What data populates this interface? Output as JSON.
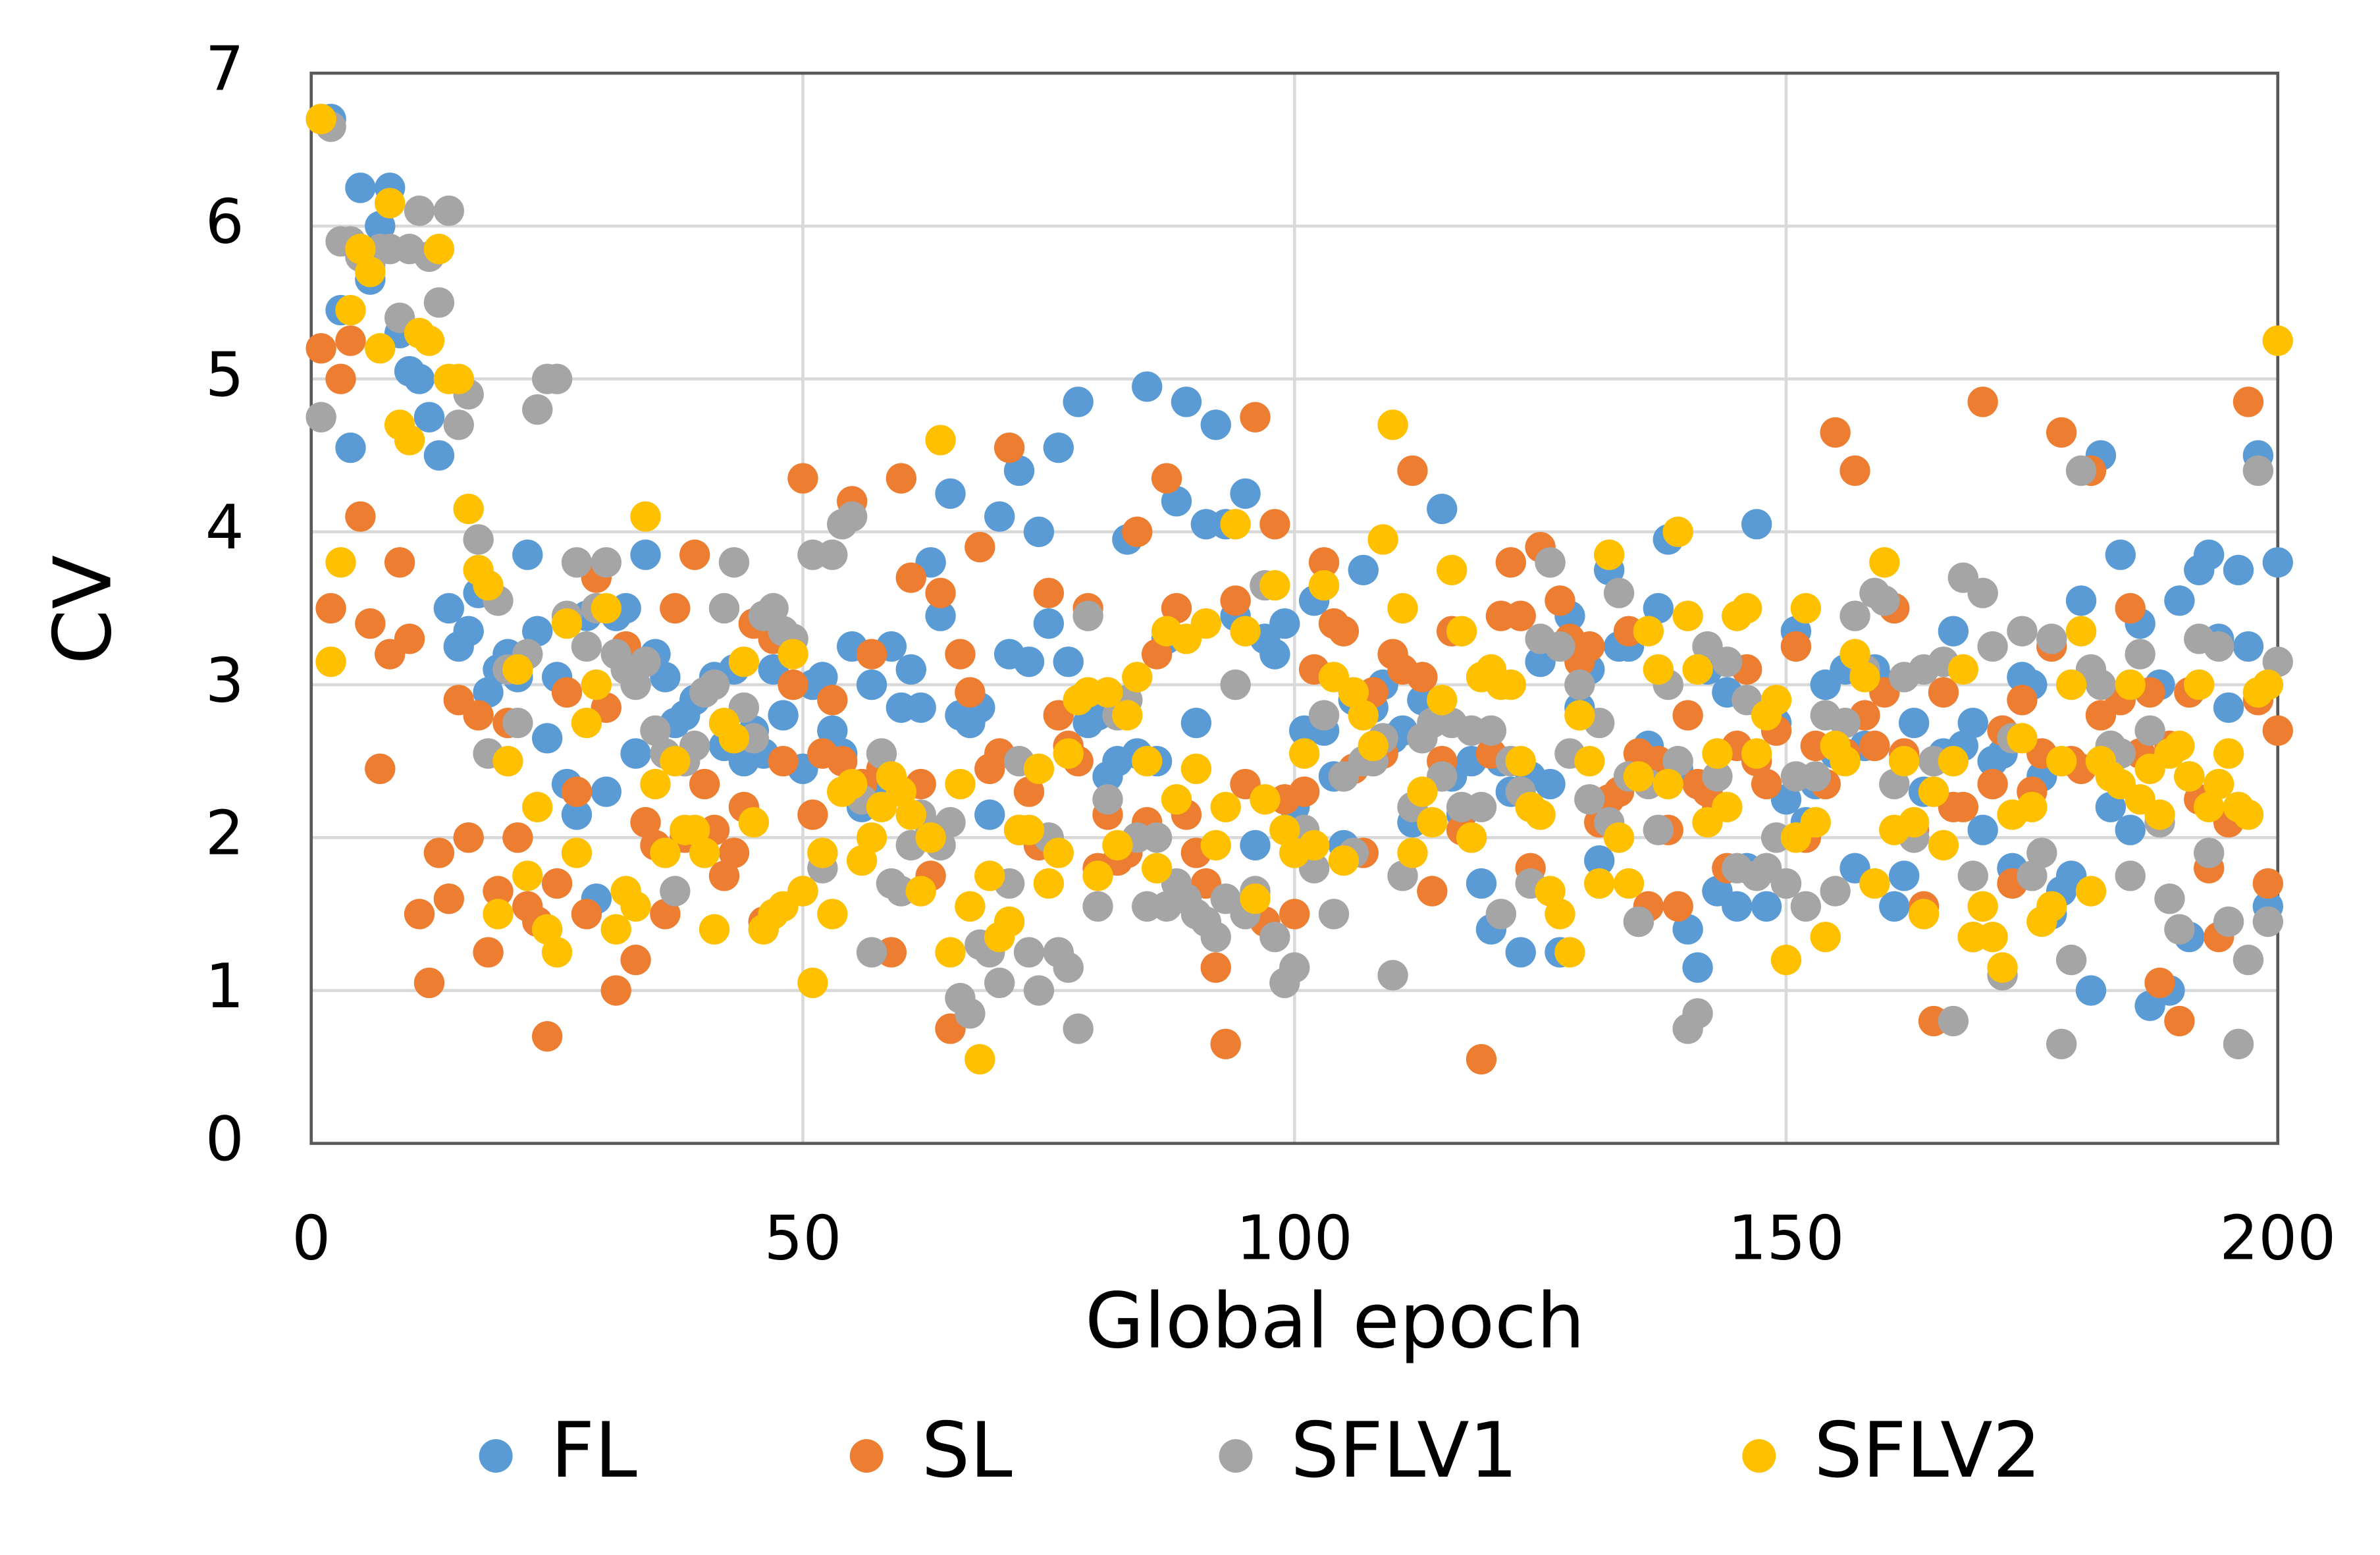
{
  "chart_data": {
    "type": "scatter",
    "x_label": "Global epoch",
    "y_label": "CV",
    "x": [
      1,
      2,
      3,
      4,
      5,
      6,
      7,
      8,
      9,
      10,
      11,
      12,
      13,
      14,
      15,
      16,
      17,
      18,
      19,
      20,
      21,
      22,
      23,
      24,
      25,
      26,
      27,
      28,
      29,
      30,
      31,
      32,
      33,
      34,
      35,
      36,
      37,
      38,
      39,
      40,
      41,
      42,
      43,
      44,
      45,
      46,
      47,
      48,
      49,
      50,
      51,
      52,
      53,
      54,
      55,
      56,
      57,
      58,
      59,
      60,
      61,
      62,
      63,
      64,
      65,
      66,
      67,
      68,
      69,
      70,
      71,
      72,
      73,
      74,
      75,
      76,
      77,
      78,
      79,
      80,
      81,
      82,
      83,
      84,
      85,
      86,
      87,
      88,
      89,
      90,
      91,
      92,
      93,
      94,
      95,
      96,
      97,
      98,
      99,
      100,
      101,
      102,
      103,
      104,
      105,
      106,
      107,
      108,
      109,
      110,
      111,
      112,
      113,
      114,
      115,
      116,
      117,
      118,
      119,
      120,
      121,
      122,
      123,
      124,
      125,
      126,
      127,
      128,
      129,
      130,
      131,
      132,
      133,
      134,
      135,
      136,
      137,
      138,
      139,
      140,
      141,
      142,
      143,
      144,
      145,
      146,
      147,
      148,
      149,
      150,
      151,
      152,
      153,
      154,
      155,
      156,
      157,
      158,
      159,
      160,
      161,
      162,
      163,
      164,
      165,
      166,
      167,
      168,
      169,
      170,
      171,
      172,
      173,
      174,
      175,
      176,
      177,
      178,
      179,
      180,
      181,
      182,
      183,
      184,
      185,
      186,
      187,
      188,
      189,
      190,
      191,
      192,
      193,
      194,
      195,
      196,
      197,
      198,
      199,
      200
    ],
    "series": [
      {
        "name": "FL",
        "color": "#5b9bd5",
        "values": [
          6.7,
          6.7,
          5.45,
          4.55,
          6.25,
          5.65,
          6.0,
          6.25,
          5.3,
          5.05,
          5.0,
          4.75,
          4.5,
          3.5,
          3.25,
          3.35,
          3.6,
          2.95,
          3.1,
          3.2,
          3.05,
          3.85,
          3.35,
          2.65,
          3.05,
          2.35,
          2.15,
          3.45,
          1.6,
          2.3,
          3.45,
          3.5,
          2.55,
          3.85,
          3.2,
          3.05,
          2.75,
          2.8,
          2.9,
          2.95,
          3.05,
          2.6,
          3.1,
          2.5,
          2.7,
          2.55,
          3.1,
          2.8,
          3.3,
          2.45,
          3.0,
          3.05,
          2.7,
          2.55,
          3.25,
          2.2,
          3.0,
          2.35,
          3.25,
          2.85,
          3.1,
          2.85,
          3.8,
          3.45,
          4.25,
          2.8,
          2.75,
          2.85,
          2.15,
          4.1,
          3.2,
          4.4,
          3.15,
          4.0,
          3.4,
          4.55,
          3.15,
          4.85,
          2.75,
          2.8,
          2.4,
          2.5,
          3.95,
          2.55,
          4.95,
          2.5,
          3.3,
          4.2,
          4.85,
          2.75,
          4.05,
          4.7,
          4.05,
          3.45,
          4.25,
          1.95,
          3.3,
          3.2,
          3.4,
          2.2,
          2.7,
          3.55,
          2.7,
          2.4,
          1.95,
          2.9,
          3.75,
          2.85,
          3.0,
          2.65,
          2.7,
          2.1,
          2.9,
          2.85,
          4.15,
          2.4,
          2.15,
          2.5,
          1.7,
          1.4,
          2.5,
          2.3,
          1.25,
          2.4,
          3.15,
          2.35,
          1.25,
          3.45,
          2.85,
          3.1,
          1.85,
          3.75,
          3.25,
          3.25,
          1.45,
          2.6,
          3.5,
          3.95,
          2.45,
          1.4,
          1.15,
          3.1,
          1.65,
          2.95,
          1.55,
          1.8,
          4.05,
          1.55,
          2.75,
          2.25,
          3.35,
          2.1,
          2.35,
          3.0,
          2.55,
          3.1,
          1.8,
          2.6,
          3.1,
          3.0,
          1.55,
          1.75,
          2.75,
          2.3,
          2.3,
          2.55,
          3.35,
          2.6,
          2.75,
          2.05,
          2.5,
          2.55,
          1.8,
          3.05,
          3.0,
          2.4,
          1.5,
          1.65,
          1.75,
          3.55,
          1.0,
          4.5,
          2.2,
          3.85,
          2.05,
          3.4,
          0.9,
          3.0,
          1.0,
          3.55,
          1.35,
          3.75,
          3.85,
          3.3,
          2.85,
          3.75,
          3.25,
          4.5,
          1.55,
          3.8
        ]
      },
      {
        "name": "SL",
        "color": "#ed7d31",
        "values": [
          5.2,
          3.5,
          5.0,
          5.25,
          4.1,
          3.4,
          2.45,
          3.2,
          3.8,
          3.3,
          1.5,
          1.05,
          1.9,
          1.6,
          2.9,
          2.0,
          2.8,
          1.25,
          1.65,
          2.75,
          2.0,
          1.55,
          1.45,
          0.7,
          1.7,
          2.95,
          2.3,
          1.5,
          3.7,
          2.85,
          1.0,
          3.25,
          1.2,
          2.1,
          1.95,
          1.5,
          3.5,
          2.0,
          3.85,
          2.35,
          2.05,
          1.75,
          1.9,
          2.2,
          3.4,
          1.45,
          3.3,
          2.5,
          3.0,
          4.35,
          2.15,
          2.55,
          2.9,
          2.5,
          4.2,
          2.35,
          3.2,
          2.45,
          1.25,
          4.35,
          3.7,
          2.35,
          1.75,
          3.6,
          0.75,
          3.2,
          2.95,
          3.9,
          2.45,
          2.55,
          4.55,
          2.05,
          2.3,
          1.95,
          3.6,
          2.8,
          2.6,
          2.5,
          3.5,
          1.8,
          2.15,
          1.85,
          1.9,
          4.0,
          2.1,
          3.2,
          4.35,
          3.5,
          2.15,
          1.9,
          1.7,
          1.15,
          0.65,
          3.55,
          2.35,
          4.75,
          1.45,
          4.05,
          2.25,
          1.5,
          2.3,
          3.1,
          3.8,
          3.4,
          3.35,
          2.45,
          1.9,
          2.95,
          2.55,
          3.2,
          3.1,
          4.4,
          3.05,
          1.65,
          2.5,
          3.35,
          2.05,
          2.0,
          0.55,
          2.55,
          3.45,
          3.8,
          3.45,
          1.8,
          3.9,
          3.8,
          3.55,
          3.3,
          3.15,
          3.25,
          2.1,
          2.25,
          2.3,
          3.35,
          2.55,
          1.55,
          2.5,
          2.05,
          1.55,
          2.8,
          2.35,
          2.3,
          2.2,
          1.8,
          2.6,
          3.1,
          2.5,
          2.35,
          2.7,
          1.7,
          3.25,
          2.0,
          2.6,
          2.35,
          4.65,
          2.55,
          4.4,
          2.8,
          2.6,
          2.95,
          3.5,
          2.55,
          2.05,
          1.55,
          0.8,
          2.95,
          2.2,
          2.2,
          1.35,
          4.85,
          2.35,
          2.7,
          1.7,
          2.9,
          2.3,
          2.55,
          3.25,
          4.65,
          2.5,
          2.45,
          4.4,
          2.8,
          2.6,
          2.9,
          3.5,
          2.55,
          2.95,
          1.05,
          2.6,
          0.8,
          2.95,
          2.25,
          1.8,
          1.35,
          2.1,
          2.2,
          4.85,
          2.9,
          1.7,
          2.7
        ]
      },
      {
        "name": "SFLV1",
        "color": "#a5a5a5",
        "values": [
          4.75,
          6.65,
          5.9,
          5.9,
          5.8,
          5.75,
          5.85,
          5.85,
          5.4,
          5.85,
          6.1,
          5.8,
          5.5,
          6.1,
          4.7,
          4.9,
          3.95,
          2.55,
          3.55,
          3.1,
          2.75,
          3.2,
          4.8,
          5.0,
          5.0,
          3.45,
          3.8,
          3.25,
          3.5,
          3.8,
          3.2,
          3.1,
          3.0,
          3.15,
          2.7,
          2.55,
          1.65,
          2.5,
          2.6,
          2.95,
          3.0,
          3.5,
          3.8,
          2.85,
          2.65,
          3.45,
          3.5,
          3.35,
          3.3,
          1.65,
          3.85,
          1.8,
          3.85,
          4.05,
          4.1,
          2.25,
          1.25,
          2.55,
          1.7,
          1.65,
          1.95,
          2.15,
          2.05,
          1.95,
          2.1,
          0.95,
          0.85,
          1.3,
          1.25,
          1.05,
          1.7,
          2.5,
          1.25,
          1.0,
          2.0,
          1.25,
          1.15,
          0.75,
          3.45,
          1.55,
          2.25,
          2.8,
          2.9,
          2.0,
          1.55,
          2.0,
          1.55,
          1.7,
          1.6,
          1.5,
          1.45,
          1.35,
          1.6,
          3.0,
          1.5,
          1.65,
          3.65,
          1.35,
          1.05,
          1.15,
          2.05,
          1.8,
          2.8,
          1.5,
          2.4,
          1.9,
          2.5,
          2.5,
          2.65,
          1.1,
          1.75,
          2.2,
          2.65,
          2.75,
          2.4,
          2.75,
          2.2,
          2.7,
          2.2,
          2.7,
          1.5,
          2.5,
          2.3,
          1.7,
          3.3,
          3.8,
          3.25,
          2.55,
          3.0,
          2.25,
          2.75,
          2.1,
          3.6,
          2.4,
          1.45,
          2.35,
          2.05,
          3.0,
          2.5,
          0.75,
          0.85,
          3.25,
          2.4,
          3.15,
          1.8,
          2.9,
          1.75,
          1.8,
          2.0,
          1.7,
          2.4,
          1.55,
          2.4,
          2.8,
          1.65,
          2.75,
          3.45,
          3.1,
          3.6,
          3.55,
          2.35,
          3.05,
          2.0,
          3.1,
          2.5,
          3.15,
          0.8,
          3.7,
          1.75,
          3.6,
          3.25,
          1.1,
          2.65,
          3.35,
          1.75,
          1.9,
          3.3,
          0.65,
          1.2,
          4.4,
          3.1,
          3.0,
          2.6,
          2.55,
          1.75,
          3.2,
          2.7,
          2.1,
          1.6,
          1.4,
          2.4,
          3.3,
          1.9,
          3.25,
          1.45,
          0.65,
          1.2,
          4.4,
          1.45,
          3.15
        ]
      },
      {
        "name": "SFLV2",
        "color": "#ffc000",
        "values": [
          6.7,
          3.15,
          3.8,
          5.45,
          5.85,
          5.7,
          5.2,
          6.15,
          4.7,
          4.6,
          5.3,
          5.25,
          5.85,
          5.0,
          5.0,
          4.15,
          3.75,
          3.65,
          1.5,
          2.5,
          3.1,
          1.75,
          2.2,
          1.4,
          1.25,
          3.4,
          1.9,
          2.75,
          3.0,
          3.5,
          1.4,
          1.65,
          1.55,
          4.1,
          2.35,
          1.9,
          2.5,
          2.05,
          2.05,
          1.9,
          1.4,
          2.75,
          2.65,
          3.15,
          2.1,
          1.4,
          1.5,
          1.55,
          3.2,
          1.65,
          1.05,
          1.9,
          1.5,
          2.3,
          2.35,
          1.85,
          2.0,
          2.2,
          2.4,
          2.3,
          2.15,
          1.65,
          2.0,
          4.6,
          1.25,
          2.35,
          1.55,
          0.55,
          1.75,
          1.35,
          1.45,
          2.05,
          2.05,
          2.45,
          1.7,
          1.9,
          2.55,
          2.9,
          2.95,
          1.75,
          2.95,
          1.95,
          2.8,
          3.05,
          2.5,
          1.8,
          3.35,
          2.25,
          3.3,
          2.45,
          3.4,
          1.95,
          2.2,
          4.05,
          3.35,
          1.6,
          2.25,
          3.65,
          2.05,
          1.9,
          2.55,
          1.95,
          3.65,
          3.05,
          1.85,
          2.95,
          2.8,
          2.6,
          3.95,
          4.7,
          3.5,
          1.9,
          2.3,
          2.1,
          2.9,
          3.75,
          3.35,
          2.0,
          3.05,
          3.1,
          3.0,
          3.0,
          2.5,
          2.2,
          2.15,
          1.65,
          1.5,
          1.25,
          2.8,
          2.5,
          1.7,
          3.85,
          2.0,
          1.7,
          2.4,
          3.35,
          3.1,
          2.35,
          4.0,
          3.45,
          3.1,
          2.1,
          2.55,
          2.2,
          3.45,
          3.5,
          2.55,
          2.8,
          2.9,
          1.2,
          2.0,
          3.5,
          2.1,
          1.35,
          2.6,
          2.5,
          3.2,
          3.05,
          1.7,
          3.8,
          2.05,
          2.5,
          2.1,
          1.5,
          2.3,
          1.95,
          2.5,
          3.1,
          1.35,
          1.55,
          1.35,
          1.15,
          2.15,
          2.65,
          2.2,
          1.45,
          1.55,
          2.5,
          3.0,
          3.35,
          1.65,
          2.5,
          2.4,
          2.35,
          3.0,
          2.25,
          2.45,
          2.15,
          2.55,
          2.6,
          2.4,
          3.0,
          2.2,
          2.35,
          2.55,
          2.2,
          2.15,
          2.95,
          3.0,
          5.25
        ]
      }
    ],
    "xlim": [
      0,
      200
    ],
    "xticks": [
      0,
      50,
      100,
      150,
      200
    ],
    "ylim": [
      0,
      7
    ],
    "yticks": [
      0,
      1,
      2,
      3,
      4,
      5,
      6,
      7
    ],
    "grid": true,
    "legend": "bottom"
  }
}
